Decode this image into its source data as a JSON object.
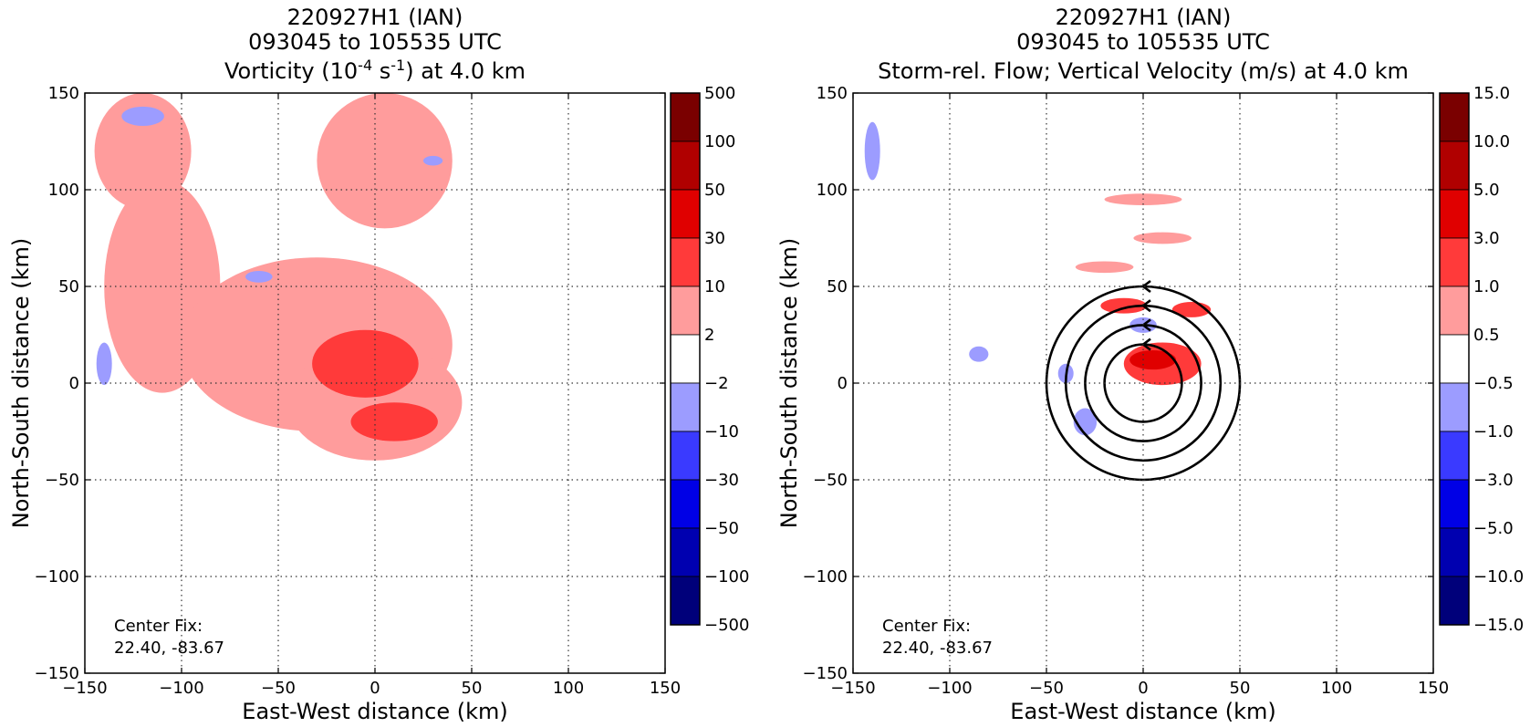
{
  "chart_data": [
    {
      "type": "heatmap",
      "title_lines": [
        "220927H1 (IAN)",
        "093045 to 105535 UTC"
      ],
      "title_var": {
        "prefix": "Vorticity (10",
        "sup1": "-4",
        "mid": " s",
        "sup2": "-1",
        "suffix": ") at 4.0 km"
      },
      "xlabel": "East-West distance (km)",
      "ylabel": "North-South distance (km)",
      "xlim": [
        -150,
        150
      ],
      "ylim": [
        -150,
        150
      ],
      "xticks": [
        "−150",
        "−100",
        "−50",
        "0",
        "50",
        "100",
        "150"
      ],
      "yticks": [
        "−150",
        "−100",
        "−50",
        "0",
        "50",
        "100",
        "150"
      ],
      "grid": true,
      "annotation": {
        "line1": "Center Fix:",
        "line2": "22.40, -83.67"
      },
      "colorbar": {
        "labels": [
          "500",
          "100",
          "50",
          "30",
          "10",
          "2",
          "−2",
          "−10",
          "−30",
          "−50",
          "−100",
          "−500"
        ],
        "colors": [
          "#7a0000",
          "#b00000",
          "#e00000",
          "#ff3a3a",
          "#ff9c9c",
          "#ffffff",
          "#9c9cff",
          "#3a3aff",
          "#0000e6",
          "#0000b0",
          "#00007a"
        ]
      },
      "features": [
        {
          "kind": "light",
          "x": -120,
          "y": 120,
          "w": 50,
          "h": 60
        },
        {
          "kind": "light",
          "x": -110,
          "y": 50,
          "w": 60,
          "h": 110
        },
        {
          "kind": "light",
          "x": 5,
          "y": 115,
          "w": 70,
          "h": 70
        },
        {
          "kind": "light",
          "x": -30,
          "y": 20,
          "w": 140,
          "h": 90
        },
        {
          "kind": "light",
          "x": 0,
          "y": -10,
          "w": 90,
          "h": 60
        },
        {
          "kind": "med",
          "x": -5,
          "y": 10,
          "w": 55,
          "h": 35
        },
        {
          "kind": "med",
          "x": 10,
          "y": -20,
          "w": 45,
          "h": 20
        },
        {
          "kind": "blue",
          "x": -120,
          "y": 138,
          "w": 22,
          "h": 10
        },
        {
          "kind": "blue",
          "x": -140,
          "y": 10,
          "w": 8,
          "h": 22
        },
        {
          "kind": "blue",
          "x": -60,
          "y": 55,
          "w": 14,
          "h": 6
        },
        {
          "kind": "blue",
          "x": 30,
          "y": 115,
          "w": 10,
          "h": 5
        }
      ]
    },
    {
      "type": "heatmap",
      "title_lines": [
        "220927H1 (IAN)",
        "093045 to 105535 UTC"
      ],
      "title_var": {
        "prefix": "Storm-rel. Flow; Vertical Velocity (m/s) at 4.0 km"
      },
      "xlabel": "East-West distance (km)",
      "ylabel": "North-South distance (km)",
      "xlim": [
        -150,
        150
      ],
      "ylim": [
        -150,
        150
      ],
      "xticks": [
        "−150",
        "−100",
        "−50",
        "0",
        "50",
        "100",
        "150"
      ],
      "yticks": [
        "−150",
        "−100",
        "−50",
        "0",
        "50",
        "100",
        "150"
      ],
      "grid": true,
      "annotation": {
        "line1": "Center Fix:",
        "line2": "22.40, -83.67"
      },
      "colorbar": {
        "labels": [
          "15.0",
          "10.0",
          "5.0",
          "3.0",
          "1.0",
          "0.5",
          "−0.5",
          "−1.0",
          "−3.0",
          "−5.0",
          "−10.0",
          "−15.0"
        ],
        "colors": [
          "#7a0000",
          "#b00000",
          "#e00000",
          "#ff3a3a",
          "#ff9c9c",
          "#ffffff",
          "#9c9cff",
          "#3a3aff",
          "#0000e6",
          "#0000b0",
          "#00007a"
        ]
      },
      "features": [
        {
          "kind": "med",
          "x": 10,
          "y": 10,
          "w": 40,
          "h": 22
        },
        {
          "kind": "red",
          "x": 5,
          "y": 12,
          "w": 24,
          "h": 10
        },
        {
          "kind": "med",
          "x": -10,
          "y": 40,
          "w": 24,
          "h": 8
        },
        {
          "kind": "med",
          "x": 25,
          "y": 38,
          "w": 20,
          "h": 8
        },
        {
          "kind": "light",
          "x": 0,
          "y": 95,
          "w": 40,
          "h": 6
        },
        {
          "kind": "light",
          "x": 10,
          "y": 75,
          "w": 30,
          "h": 6
        },
        {
          "kind": "light",
          "x": -20,
          "y": 60,
          "w": 30,
          "h": 6
        },
        {
          "kind": "blue",
          "x": 0,
          "y": 30,
          "w": 14,
          "h": 8
        },
        {
          "kind": "blue",
          "x": -30,
          "y": -20,
          "w": 12,
          "h": 14
        },
        {
          "kind": "blue",
          "x": -40,
          "y": 5,
          "w": 8,
          "h": 10
        },
        {
          "kind": "blue",
          "x": -140,
          "y": 120,
          "w": 8,
          "h": 30
        },
        {
          "kind": "blue",
          "x": -85,
          "y": 15,
          "w": 10,
          "h": 8
        }
      ],
      "streamlines": [
        {
          "cx": 0,
          "cy": 0,
          "r": 20
        },
        {
          "cx": 0,
          "cy": 0,
          "r": 30
        },
        {
          "cx": 0,
          "cy": 0,
          "r": 40
        },
        {
          "cx": 0,
          "cy": 0,
          "r": 50
        }
      ]
    }
  ]
}
